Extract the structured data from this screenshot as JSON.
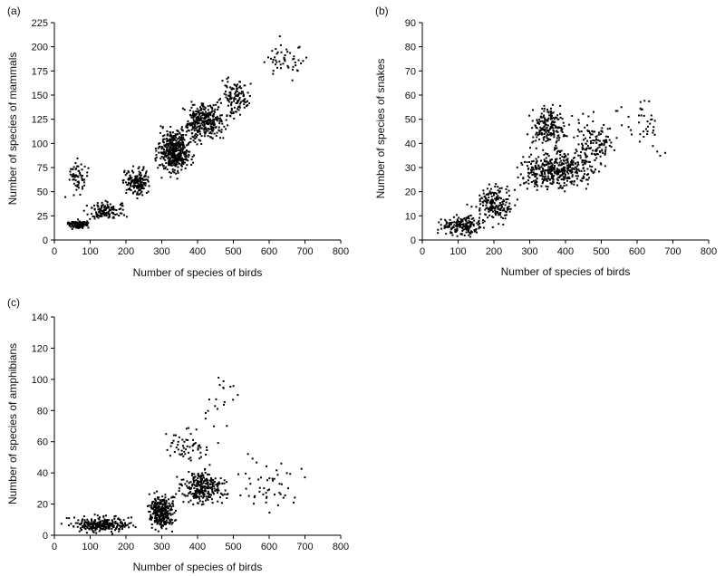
{
  "chart_data": [
    {
      "type": "scatter",
      "panel_label": "(a)",
      "xlabel": "Number of species of birds",
      "ylabel": "Number of species of mammals",
      "xlim": [
        0,
        800
      ],
      "ylim": [
        0,
        225
      ],
      "xticks": [
        0,
        100,
        200,
        300,
        400,
        500,
        600,
        700,
        800
      ],
      "yticks": [
        0,
        25,
        50,
        75,
        100,
        125,
        150,
        175,
        200,
        225
      ],
      "grid": false,
      "clusters": [
        {
          "x": [
            20,
            110
          ],
          "y": [
            10,
            22
          ],
          "n": 120
        },
        {
          "x": [
            60,
            220
          ],
          "y": [
            18,
            45
          ],
          "n": 120
        },
        {
          "x": [
            180,
            280
          ],
          "y": [
            40,
            80
          ],
          "n": 160
        },
        {
          "x": [
            270,
            400
          ],
          "y": [
            60,
            125
          ],
          "n": 420
        },
        {
          "x": [
            340,
            500
          ],
          "y": [
            95,
            150
          ],
          "n": 320
        },
        {
          "x": [
            450,
            560
          ],
          "y": [
            120,
            175
          ],
          "n": 120
        },
        {
          "x": [
            20,
            110
          ],
          "y": [
            40,
            90
          ],
          "n": 60
        },
        {
          "x": [
            560,
            720
          ],
          "y": [
            160,
            215
          ],
          "n": 50
        }
      ]
    },
    {
      "type": "scatter",
      "panel_label": "(b)",
      "xlabel": "Number of species of birds",
      "ylabel": "Number of species of snakes",
      "xlim": [
        0,
        800
      ],
      "ylim": [
        0,
        90
      ],
      "xticks": [
        0,
        100,
        200,
        300,
        400,
        500,
        600,
        700,
        800
      ],
      "yticks": [
        0,
        10,
        20,
        30,
        40,
        50,
        60,
        70,
        80,
        90
      ],
      "grid": false,
      "clusters": [
        {
          "x": [
            20,
            200
          ],
          "y": [
            0,
            12
          ],
          "n": 180
        },
        {
          "x": [
            120,
            280
          ],
          "y": [
            5,
            25
          ],
          "n": 180
        },
        {
          "x": [
            250,
            500
          ],
          "y": [
            18,
            40
          ],
          "n": 420
        },
        {
          "x": [
            280,
            420
          ],
          "y": [
            35,
            58
          ],
          "n": 200
        },
        {
          "x": [
            400,
            560
          ],
          "y": [
            25,
            55
          ],
          "n": 140
        },
        {
          "x": [
            520,
            720
          ],
          "y": [
            30,
            70
          ],
          "n": 40
        }
      ]
    },
    {
      "type": "scatter",
      "panel_label": "(c)",
      "xlabel": "Number of species of birds",
      "ylabel": "Number of species of amphibians",
      "xlim": [
        0,
        800
      ],
      "ylim": [
        0,
        140
      ],
      "xticks": [
        0,
        100,
        200,
        300,
        400,
        500,
        600,
        700,
        800
      ],
      "yticks": [
        0,
        20,
        40,
        60,
        80,
        100,
        120,
        140
      ],
      "grid": false,
      "clusters": [
        {
          "x": [
            10,
            250
          ],
          "y": [
            0,
            14
          ],
          "n": 260
        },
        {
          "x": [
            250,
            350
          ],
          "y": [
            0,
            30
          ],
          "n": 280
        },
        {
          "x": [
            330,
            500
          ],
          "y": [
            15,
            45
          ],
          "n": 260
        },
        {
          "x": [
            280,
            460
          ],
          "y": [
            40,
            75
          ],
          "n": 60
        },
        {
          "x": [
            400,
            520
          ],
          "y": [
            60,
            115
          ],
          "n": 20
        },
        {
          "x": [
            480,
            720
          ],
          "y": [
            5,
            60
          ],
          "n": 50
        }
      ]
    }
  ]
}
